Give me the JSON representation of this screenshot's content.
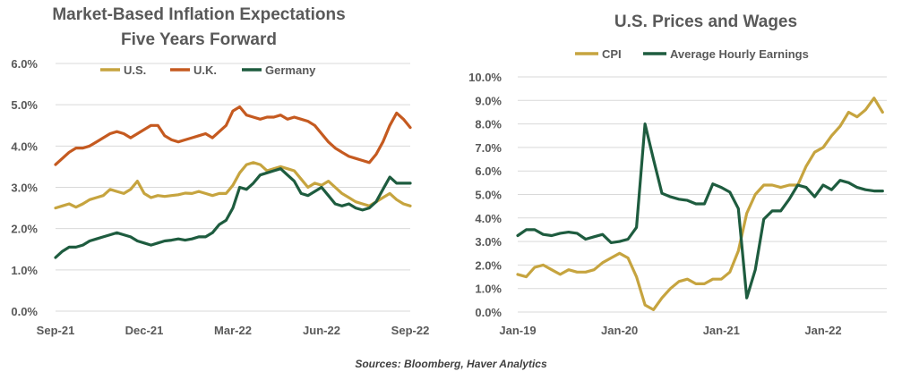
{
  "source": "Sources: Bloomberg, Haver Analytics",
  "chart_data": [
    {
      "type": "line",
      "title_lines": [
        "Market-Based Inflation Expectations",
        "Five Years Forward"
      ],
      "ylim": [
        0,
        6
      ],
      "y_ticks": [
        0,
        1,
        2,
        3,
        4,
        5,
        6
      ],
      "y_tick_labels": [
        "0.0%",
        "1.0%",
        "2.0%",
        "3.0%",
        "4.0%",
        "5.0%",
        "6.0%"
      ],
      "x_tick_labels": [
        "Sep-21",
        "Dec-21",
        "Mar-22",
        "Jun-22",
        "Sep-22"
      ],
      "x_ticks": [
        0,
        13,
        26,
        39,
        52
      ],
      "xlim": [
        0,
        52
      ],
      "grid": true,
      "legend_position": "top",
      "series": [
        {
          "name": "U.S.",
          "color": "#c6a43f",
          "x": [
            0,
            1,
            2,
            3,
            4,
            5,
            6,
            7,
            8,
            9,
            10,
            11,
            12,
            13,
            14,
            15,
            16,
            17,
            18,
            19,
            20,
            21,
            22,
            23,
            24,
            25,
            26,
            27,
            28,
            29,
            30,
            31,
            32,
            33,
            34,
            35,
            36,
            37,
            38,
            39,
            40,
            41,
            42,
            43,
            44,
            45,
            46,
            47,
            48,
            49,
            50,
            51,
            52
          ],
          "values": [
            2.5,
            2.55,
            2.6,
            2.52,
            2.6,
            2.7,
            2.75,
            2.8,
            2.95,
            2.9,
            2.85,
            2.95,
            3.15,
            2.85,
            2.75,
            2.8,
            2.78,
            2.8,
            2.82,
            2.86,
            2.85,
            2.9,
            2.85,
            2.8,
            2.85,
            2.85,
            3.05,
            3.35,
            3.55,
            3.6,
            3.55,
            3.4,
            3.45,
            3.5,
            3.45,
            3.4,
            3.2,
            3.0,
            3.1,
            3.05,
            3.15,
            3.0,
            2.85,
            2.75,
            2.65,
            2.6,
            2.55,
            2.65,
            2.75,
            2.85,
            2.7,
            2.6,
            2.55
          ]
        },
        {
          "name": "U.K.",
          "color": "#c55a20",
          "x": [
            0,
            1,
            2,
            3,
            4,
            5,
            6,
            7,
            8,
            9,
            10,
            11,
            12,
            13,
            14,
            15,
            16,
            17,
            18,
            19,
            20,
            21,
            22,
            23,
            24,
            25,
            26,
            27,
            28,
            29,
            30,
            31,
            32,
            33,
            34,
            35,
            36,
            37,
            38,
            39,
            40,
            41,
            42,
            43,
            44,
            45,
            46,
            47,
            48,
            49,
            50,
            51,
            52
          ],
          "values": [
            3.55,
            3.7,
            3.85,
            3.95,
            3.95,
            4.0,
            4.1,
            4.2,
            4.3,
            4.35,
            4.3,
            4.2,
            4.3,
            4.4,
            4.5,
            4.5,
            4.25,
            4.15,
            4.1,
            4.15,
            4.2,
            4.25,
            4.3,
            4.2,
            4.35,
            4.5,
            4.85,
            4.95,
            4.75,
            4.7,
            4.65,
            4.7,
            4.7,
            4.75,
            4.65,
            4.7,
            4.65,
            4.6,
            4.5,
            4.3,
            4.1,
            3.95,
            3.85,
            3.75,
            3.7,
            3.65,
            3.6,
            3.8,
            4.1,
            4.5,
            4.8,
            4.65,
            4.45
          ]
        },
        {
          "name": "Germany",
          "color": "#1e5c3f",
          "x": [
            0,
            1,
            2,
            3,
            4,
            5,
            6,
            7,
            8,
            9,
            10,
            11,
            12,
            13,
            14,
            15,
            16,
            17,
            18,
            19,
            20,
            21,
            22,
            23,
            24,
            25,
            26,
            27,
            28,
            29,
            30,
            31,
            32,
            33,
            34,
            35,
            36,
            37,
            38,
            39,
            40,
            41,
            42,
            43,
            44,
            45,
            46,
            47,
            48,
            49,
            50,
            51,
            52
          ],
          "values": [
            1.3,
            1.45,
            1.55,
            1.55,
            1.6,
            1.7,
            1.75,
            1.8,
            1.85,
            1.9,
            1.85,
            1.8,
            1.7,
            1.65,
            1.6,
            1.65,
            1.7,
            1.72,
            1.75,
            1.72,
            1.75,
            1.8,
            1.8,
            1.9,
            2.1,
            2.2,
            2.5,
            3.0,
            2.95,
            3.1,
            3.3,
            3.35,
            3.4,
            3.45,
            3.3,
            3.15,
            2.85,
            2.8,
            2.9,
            3.0,
            2.8,
            2.6,
            2.55,
            2.6,
            2.5,
            2.45,
            2.5,
            2.65,
            2.95,
            3.25,
            3.1,
            3.1,
            3.1
          ]
        }
      ]
    },
    {
      "type": "line",
      "title_lines": [
        "U.S. Prices and Wages"
      ],
      "ylim": [
        0,
        10
      ],
      "y_ticks": [
        0,
        1,
        2,
        3,
        4,
        5,
        6,
        7,
        8,
        9,
        10
      ],
      "y_tick_labels": [
        "0.0%",
        "1.0%",
        "2.0%",
        "3.0%",
        "4.0%",
        "5.0%",
        "6.0%",
        "7.0%",
        "8.0%",
        "9.0%",
        "10.0%"
      ],
      "x_tick_labels": [
        "Jan-19",
        "Jan-20",
        "Jan-21",
        "Jan-22"
      ],
      "x_ticks": [
        0,
        12,
        24,
        36
      ],
      "xlim": [
        0,
        43.5
      ],
      "grid": true,
      "legend_position": "top",
      "series": [
        {
          "name": "CPI",
          "color": "#c6a43f",
          "x": [
            0,
            1,
            2,
            3,
            4,
            5,
            6,
            7,
            8,
            9,
            10,
            11,
            12,
            13,
            14,
            15,
            16,
            17,
            18,
            19,
            20,
            21,
            22,
            23,
            24,
            25,
            26,
            27,
            28,
            29,
            30,
            31,
            32,
            33,
            34,
            35,
            36,
            37,
            38,
            39,
            40,
            41,
            42,
            43
          ],
          "values": [
            1.6,
            1.5,
            1.9,
            2.0,
            1.8,
            1.6,
            1.8,
            1.7,
            1.7,
            1.8,
            2.1,
            2.3,
            2.5,
            2.3,
            1.5,
            0.3,
            0.1,
            0.6,
            1.0,
            1.3,
            1.4,
            1.2,
            1.2,
            1.4,
            1.4,
            1.7,
            2.6,
            4.2,
            5.0,
            5.4,
            5.4,
            5.3,
            5.4,
            5.4,
            6.2,
            6.8,
            7.0,
            7.5,
            7.9,
            8.5,
            8.3,
            8.6,
            9.1,
            8.5
          ]
        },
        {
          "name": "Average Hourly Earnings",
          "color": "#1e5c3f",
          "x": [
            0,
            1,
            2,
            3,
            4,
            5,
            6,
            7,
            8,
            9,
            10,
            11,
            12,
            13,
            14,
            15,
            16,
            17,
            18,
            19,
            20,
            21,
            22,
            23,
            24,
            25,
            26,
            27,
            28,
            29,
            30,
            31,
            32,
            33,
            34,
            35,
            36,
            37,
            38,
            39,
            40,
            41,
            42,
            43
          ],
          "values": [
            3.25,
            3.5,
            3.5,
            3.3,
            3.25,
            3.35,
            3.4,
            3.35,
            3.1,
            3.2,
            3.3,
            2.95,
            3.0,
            3.1,
            3.6,
            8.0,
            6.5,
            5.05,
            4.9,
            4.8,
            4.75,
            4.6,
            4.6,
            5.45,
            5.3,
            5.1,
            4.4,
            0.6,
            1.8,
            3.95,
            4.3,
            4.3,
            4.8,
            5.4,
            5.3,
            4.9,
            5.4,
            5.2,
            5.6,
            5.5,
            5.3,
            5.2,
            5.15,
            5.15
          ]
        }
      ]
    }
  ]
}
